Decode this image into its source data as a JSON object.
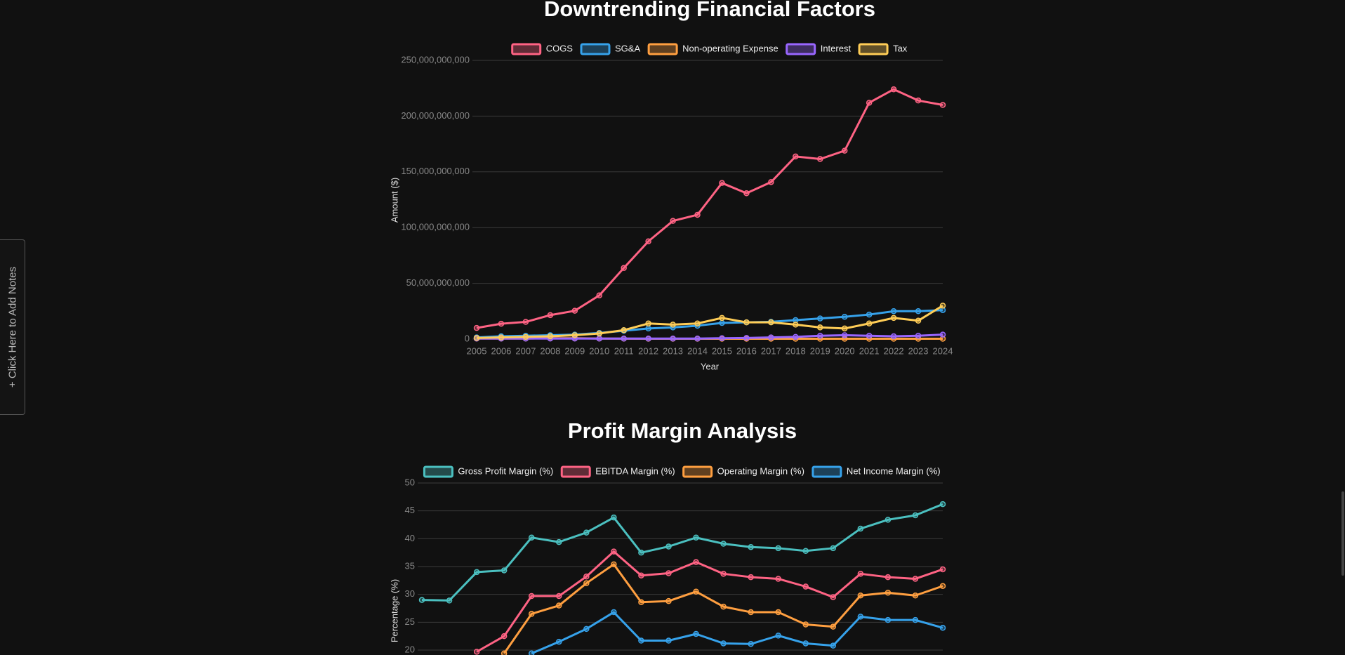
{
  "sidebar": {
    "label": "+ Click Here to Add Notes"
  },
  "chart_data": [
    {
      "type": "line",
      "title": "Downtrending Financial Factors",
      "x_label": "Year",
      "y_label": "Amount ($)",
      "legend": "top",
      "grid": true,
      "categories": [
        "2005",
        "2006",
        "2007",
        "2008",
        "2009",
        "2010",
        "2011",
        "2012",
        "2013",
        "2014",
        "2015",
        "2016",
        "2017",
        "2018",
        "2019",
        "2020",
        "2021",
        "2022",
        "2023",
        "2024"
      ],
      "ylim": [
        0,
        250000000000
      ],
      "yticks": [
        {
          "value": 0,
          "label": "0"
        },
        {
          "value": 50000000000,
          "label": "50,000,000,000"
        },
        {
          "value": 100000000000,
          "label": "100,000,000,000"
        },
        {
          "value": 150000000000,
          "label": "150,000,000,000"
        },
        {
          "value": 200000000000,
          "label": "200,000,000,000"
        },
        {
          "value": 250000000000,
          "label": "250,000,000,000"
        }
      ],
      "series": [
        {
          "name": "COGS",
          "color": "#ff6384",
          "values": [
            10000000000,
            13800000000,
            15400000000,
            21500000000,
            25400000000,
            39200000000,
            63800000000,
            87700000000,
            106000000000,
            111500000000,
            140000000000,
            130800000000,
            140800000000,
            163800000000,
            161500000000,
            169000000000,
            212000000000,
            224000000000,
            214000000000,
            210000000000
          ]
        },
        {
          "name": "SG&A",
          "color": "#36a2eb",
          "values": [
            1500000000,
            2500000000,
            3000000000,
            3500000000,
            4000000000,
            5500000000,
            7500000000,
            9500000000,
            10500000000,
            12000000000,
            14500000000,
            15000000000,
            15500000000,
            17000000000,
            18500000000,
            20000000000,
            22000000000,
            25000000000,
            25000000000,
            26000000000
          ]
        },
        {
          "name": "Non-operating Expense",
          "color": "#ff9f40",
          "values": [
            500000000,
            500000000,
            500000000,
            800000000,
            800000000,
            500000000,
            400000000,
            300000000,
            300000000,
            300000000,
            300000000,
            300000000,
            300000000,
            300000000,
            300000000,
            300000000,
            300000000,
            300000000,
            300000000,
            300000000
          ]
        },
        {
          "name": "Interest",
          "color": "#9966ff",
          "values": [
            500000000,
            500000000,
            500000000,
            500000000,
            500000000,
            500000000,
            500000000,
            500000000,
            500000000,
            500000000,
            800000000,
            1000000000,
            1500000000,
            2000000000,
            3000000000,
            3500000000,
            3000000000,
            2500000000,
            3000000000,
            4000000000
          ]
        },
        {
          "name": "Tax",
          "color": "#ffcd56",
          "values": [
            1000000000,
            1500000000,
            2000000000,
            2500000000,
            3500000000,
            5000000000,
            8000000000,
            14000000000,
            13000000000,
            14000000000,
            19000000000,
            15000000000,
            15000000000,
            13000000000,
            10500000000,
            9500000000,
            14000000000,
            19000000000,
            16500000000,
            30000000000
          ]
        }
      ]
    },
    {
      "type": "line",
      "title": "Profit Margin Analysis",
      "y_label": "Percentage (%)",
      "legend": "top",
      "grid": true,
      "ylim": [
        20,
        50
      ],
      "yticks": [
        20,
        25,
        30,
        35,
        40,
        45,
        50
      ],
      "series": [
        {
          "name": "Gross Profit Margin (%)",
          "color": "#4bc0c0",
          "values": [
            29.0,
            28.9,
            34.0,
            34.3,
            40.2,
            39.4,
            41.1,
            43.8,
            37.5,
            38.6,
            40.2,
            39.1,
            38.5,
            38.3,
            37.8,
            38.3,
            41.8,
            43.4,
            44.2,
            46.2
          ]
        },
        {
          "name": "EBITDA Margin (%)",
          "color": "#ff6384",
          "values": [
            null,
            null,
            19.7,
            22.5,
            29.7,
            29.7,
            33.2,
            37.7,
            33.4,
            33.8,
            35.8,
            33.7,
            33.1,
            32.8,
            31.4,
            29.5,
            33.7,
            33.1,
            32.8,
            34.5
          ]
        },
        {
          "name": "Operating Margin (%)",
          "color": "#ff9f40",
          "values": [
            null,
            null,
            null,
            19.4,
            26.5,
            28.0,
            32.0,
            35.4,
            28.6,
            28.8,
            30.5,
            27.8,
            26.8,
            26.8,
            24.6,
            24.2,
            29.8,
            30.3,
            29.8,
            31.5
          ]
        },
        {
          "name": "Net Income Margin (%)",
          "color": "#36a2eb",
          "values": [
            null,
            null,
            null,
            null,
            19.4,
            21.5,
            23.8,
            26.8,
            21.7,
            21.7,
            22.9,
            21.2,
            21.1,
            22.6,
            21.2,
            20.8,
            26.0,
            25.4,
            25.4,
            24.0
          ]
        }
      ]
    }
  ]
}
